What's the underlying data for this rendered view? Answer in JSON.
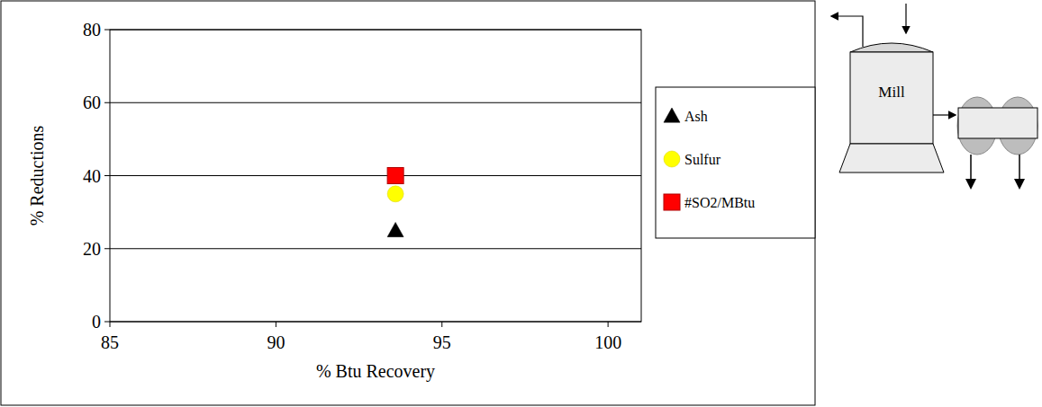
{
  "chart_data": {
    "type": "scatter",
    "xlabel": "% Btu Recovery",
    "ylabel": "% Reductions",
    "xlim": [
      85,
      101
    ],
    "ylim": [
      0,
      80
    ],
    "xticks": [
      85,
      90,
      95,
      100
    ],
    "yticks": [
      0,
      20,
      40,
      60,
      80
    ],
    "grid": true,
    "legend": "right",
    "series": [
      {
        "name": "Ash",
        "color": "#000000",
        "marker": "triangle",
        "x": [
          93.6
        ],
        "values": [
          25
        ]
      },
      {
        "name": "Sulfur",
        "color": "#ffff00",
        "marker": "circle",
        "x": [
          93.6
        ],
        "values": [
          35
        ]
      },
      {
        "name": "#SO2/MBtu",
        "color": "#ff0000",
        "marker": "square",
        "x": [
          93.6
        ],
        "values": [
          40
        ]
      }
    ]
  },
  "diagram": {
    "label": "Mill"
  }
}
